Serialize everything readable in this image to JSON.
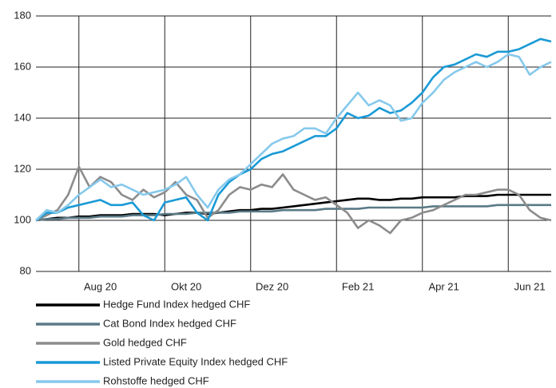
{
  "chart_data": {
    "type": "line",
    "categories": [
      null,
      null,
      null,
      null,
      null,
      null,
      "Aug 20",
      null,
      null,
      null,
      null,
      null,
      null,
      null,
      "Okt 20",
      null,
      null,
      null,
      null,
      null,
      null,
      null,
      "Dez 20",
      null,
      null,
      null,
      null,
      null,
      null,
      null,
      "Feb 21",
      null,
      null,
      null,
      null,
      null,
      null,
      null,
      "Apr 21",
      null,
      null,
      null,
      null,
      null,
      null,
      null,
      "Jun 21",
      null,
      null
    ],
    "ylim": [
      80,
      180
    ],
    "yticks": [
      80,
      100,
      120,
      140,
      160,
      180
    ],
    "grid": true,
    "series": [
      {
        "name": "Hedge Fund Index hedged CHF",
        "color": "#000000",
        "values": [
          100,
          100.5,
          101,
          101,
          101.5,
          101.5,
          102,
          102,
          102,
          102.5,
          102.5,
          102.5,
          102,
          102.5,
          103,
          103,
          102.5,
          103,
          103.5,
          104,
          104,
          104.5,
          104.5,
          105,
          105.5,
          106,
          106.5,
          107,
          107.5,
          108,
          108.5,
          108.5,
          108,
          108,
          108.5,
          108.5,
          109,
          109,
          109,
          109,
          109.5,
          109.5,
          109.5,
          110,
          110,
          110,
          110,
          110,
          110
        ]
      },
      {
        "name": "Cat Bond Index hedged CHF",
        "color": "#5a7a86",
        "values": [
          100,
          100.5,
          100.5,
          101,
          101,
          101,
          101.5,
          101.5,
          101.5,
          102,
          102,
          102,
          102.5,
          102.5,
          102.5,
          103,
          103,
          103,
          103,
          103.5,
          103.5,
          103.5,
          103.5,
          104,
          104,
          104,
          104,
          104.5,
          104.5,
          104.5,
          104.5,
          105,
          105,
          105,
          105,
          105,
          105,
          105.5,
          105.5,
          105.5,
          105.5,
          105.5,
          105.5,
          106,
          106,
          106,
          106,
          106,
          106
        ]
      },
      {
        "name": "Gold hedged CHF",
        "color": "#8c8c8c",
        "values": [
          100,
          102,
          104,
          110,
          121,
          113,
          117,
          115,
          110,
          108,
          112,
          109,
          111,
          115,
          110,
          108,
          101,
          104,
          110,
          113,
          112,
          114,
          113,
          118,
          112,
          110,
          108,
          109,
          106,
          103,
          97,
          100,
          98,
          95,
          100,
          101,
          103,
          104,
          106,
          108,
          110,
          110,
          111,
          112,
          112,
          110,
          104,
          101,
          100
        ]
      },
      {
        "name": "Listed Private Equity Index hedged CHF",
        "color": "#1a9ad6",
        "values": [
          100,
          103,
          103,
          105,
          106,
          107,
          108,
          106,
          106,
          107,
          102,
          100,
          107,
          108,
          109,
          103,
          100,
          110,
          115,
          118,
          120,
          124,
          126,
          127,
          129,
          131,
          133,
          133,
          136,
          142,
          140,
          141,
          144,
          142,
          143,
          146,
          150,
          156,
          160,
          161,
          163,
          165,
          164,
          166,
          166,
          167,
          169,
          171,
          170
        ]
      },
      {
        "name": "Rohstoffe hedged CHF",
        "color": "#86c9ec",
        "values": [
          100,
          104,
          103,
          106,
          110,
          113,
          116,
          113,
          114,
          112,
          110,
          111,
          112,
          114,
          117,
          110,
          105,
          112,
          116,
          118,
          122,
          126,
          130,
          132,
          133,
          136,
          136,
          134,
          140,
          145,
          150,
          145,
          147,
          145,
          139,
          140,
          146,
          150,
          155,
          158,
          160,
          162,
          160,
          162,
          165,
          164,
          157,
          160,
          162
        ]
      }
    ]
  }
}
